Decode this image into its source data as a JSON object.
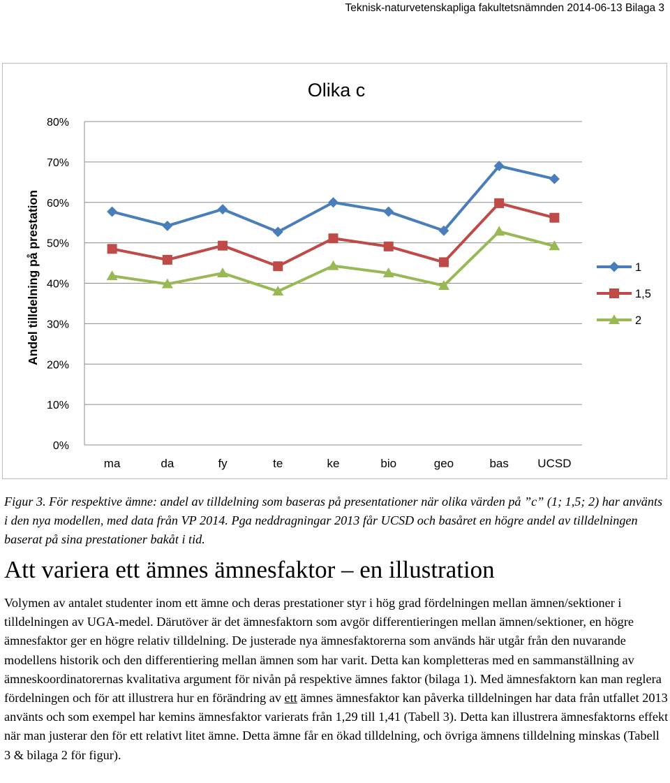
{
  "header": {
    "text": "Teknisk-naturvetenskapliga fakultetsnämnden 2014-06-13 Bilaga 3"
  },
  "chart_data": {
    "type": "line",
    "title": "Olika c",
    "ylabel": "Andel tilldelning på prestation",
    "xlabel": "",
    "categories": [
      "ma",
      "da",
      "fy",
      "te",
      "ke",
      "bio",
      "geo",
      "bas",
      "UCSD"
    ],
    "ylim": [
      0,
      80
    ],
    "yticks": [
      "0%",
      "10%",
      "20%",
      "30%",
      "40%",
      "50%",
      "60%",
      "70%",
      "80%"
    ],
    "grid": true,
    "legend_position": "right",
    "series": [
      {
        "name": "1",
        "color": "#4a7ebb",
        "marker": "diamond",
        "values": [
          57.7,
          54.2,
          58.3,
          52.7,
          60.0,
          57.7,
          53.0,
          69.0,
          65.8
        ]
      },
      {
        "name": "1,5",
        "color": "#be4b48",
        "marker": "square",
        "values": [
          48.5,
          45.8,
          49.3,
          44.2,
          51.1,
          49.1,
          45.2,
          59.8,
          56.2
        ]
      },
      {
        "name": "2",
        "color": "#98b954",
        "marker": "triangle",
        "values": [
          41.8,
          39.8,
          42.5,
          38.0,
          44.3,
          42.5,
          39.4,
          52.8,
          49.2
        ]
      }
    ]
  },
  "caption": {
    "text": "Figur 3. För respektive ämne: andel av tilldelning som baseras på presentationer när olika värden på ”c” (1; 1,5; 2) har använts i den nya modellen, med data från VP 2014. Pga neddragningar 2013 får UCSD och basåret en högre andel av tilldelningen baserat på sina prestationer bakåt i tid."
  },
  "section": {
    "heading": "Att variera ett ämnes ämnesfaktor – en illustration",
    "body_part1": "Volymen av antalet studenter inom ett ämne och deras prestationer styr i hög grad fördelningen mellan ämnen/sektioner i tilldelningen av UGA-medel. Därutöver är det ämnesfaktorn som avgör differentieringen mellan ämnen/sektioner, en högre ämnesfaktor ger en högre relativ tilldelning. De justerade nya ämnesfaktorerna som används här utgår från den nuvarande modellens historik och den differentiering mellan ämnen som har varit. Detta kan kompletteras med en sammanställning av ämneskoordinatorernas kvalitativa argument för nivån på respektive ämnes faktor (bilaga 1). Med ämnesfaktorn kan man reglera fördelningen och för att illustrera hur en förändring av ",
    "body_underlined": "ett",
    "body_part2": " ämnes ämnesfaktor kan påverka tilldelningen har data från utfallet 2013 använts och som exempel har kemins ämnesfaktor varierats från 1,29 till 1,41 (Tabell 3). Detta kan illustrera ämnesfaktorns effekt när man justerar den för ett relativt litet ämne. Detta ämne får en ökad tilldelning, och övriga ämnens tilldelning minskas (Tabell 3 & bilaga 2 för figur)."
  }
}
